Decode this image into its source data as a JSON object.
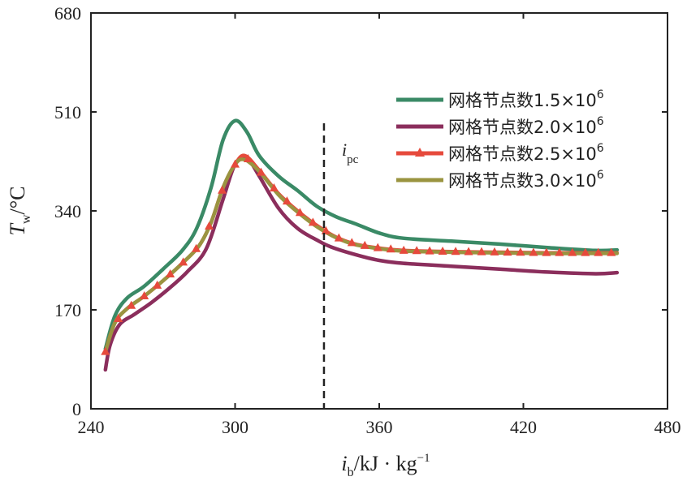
{
  "chart_data": {
    "type": "line",
    "title": "",
    "xlabel": "i_b/kJ·kg⁻¹",
    "xlabel_parts": {
      "var": "i",
      "sub": "b",
      "unit": "/kJ · kg",
      "sup": "−1"
    },
    "ylabel": "T_w/°C",
    "ylabel_parts": {
      "var": "T",
      "sub": "w",
      "unit": "/°C"
    },
    "xlim": [
      240,
      480
    ],
    "ylim": [
      0,
      680
    ],
    "xticks": [
      240,
      300,
      360,
      420,
      480
    ],
    "yticks": [
      0,
      170,
      340,
      510,
      680
    ],
    "grid": false,
    "legend_position": "top-right",
    "annotation": {
      "text": "i",
      "sub": "pc",
      "x": 337
    },
    "series": [
      {
        "name": "网格节点数1.5×10⁶",
        "label": "网格节点数1.5×10",
        "sup": "6",
        "color": "#3a8a66",
        "marker": "none",
        "x": [
          246,
          250,
          255,
          262,
          270,
          278,
          284,
          290,
          295,
          300,
          305,
          310,
          318,
          326,
          334,
          342,
          350,
          360,
          370,
          390,
          410,
          430,
          450,
          459
        ],
        "y": [
          103,
          160,
          190,
          210,
          240,
          272,
          310,
          380,
          462,
          495,
          475,
          435,
          400,
          375,
          348,
          330,
          318,
          302,
          293,
          288,
          283,
          277,
          272,
          273
        ]
      },
      {
        "name": "网格节点数2.0×10⁶",
        "label": "网格节点数2.0×10",
        "sup": "6",
        "color": "#8b2e5c",
        "marker": "none",
        "x": [
          246,
          248,
          252,
          258,
          265,
          272,
          280,
          288,
          295,
          300,
          305,
          310,
          318,
          326,
          334,
          340,
          350,
          360,
          370,
          390,
          410,
          430,
          450,
          459
        ],
        "y": [
          67,
          110,
          145,
          162,
          182,
          205,
          235,
          275,
          360,
          420,
          430,
          400,
          345,
          310,
          290,
          278,
          265,
          255,
          250,
          245,
          240,
          235,
          232,
          234
        ]
      },
      {
        "name": "网格节点数2.5×10⁶",
        "label": "网格节点数2.5×10",
        "sup": "6",
        "color": "#e64a3c",
        "marker": "triangle",
        "x": [
          246,
          250,
          255,
          262,
          270,
          278,
          285,
          290,
          295,
          300,
          304,
          310,
          318,
          326,
          334,
          342,
          350,
          360,
          370,
          390,
          410,
          430,
          450,
          459
        ],
        "y": [
          98,
          148,
          172,
          193,
          220,
          250,
          280,
          320,
          380,
          420,
          435,
          410,
          370,
          340,
          315,
          295,
          283,
          276,
          272,
          270,
          269,
          268,
          268,
          268
        ]
      },
      {
        "name": "网格节点数3.0×10⁶",
        "label": "网格节点数3.0×10",
        "sup": "6",
        "color": "#9a9440",
        "marker": "none",
        "x": [
          246,
          250,
          255,
          262,
          270,
          278,
          285,
          290,
          295,
          300,
          304,
          310,
          318,
          326,
          334,
          342,
          350,
          360,
          370,
          390,
          410,
          430,
          450,
          459
        ],
        "y": [
          98,
          148,
          172,
          193,
          220,
          250,
          280,
          320,
          380,
          420,
          428,
          408,
          368,
          338,
          313,
          294,
          282,
          275,
          271,
          269,
          268,
          267,
          267,
          267
        ]
      }
    ]
  }
}
